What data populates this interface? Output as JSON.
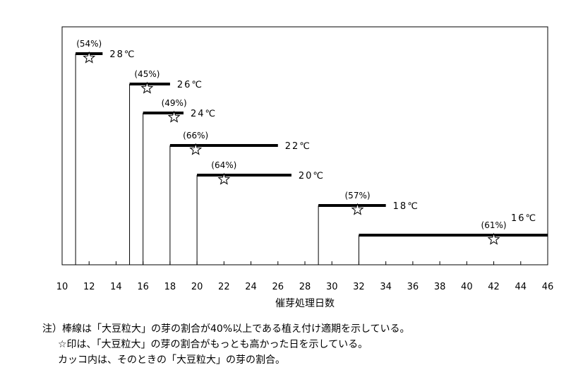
{
  "chart_data": {
    "type": "range-bar",
    "xlabel": "催芽処理日数",
    "xlim": [
      10,
      46
    ],
    "xticks": [
      10,
      12,
      14,
      16,
      18,
      20,
      22,
      24,
      26,
      28,
      30,
      32,
      34,
      36,
      38,
      40,
      42,
      44,
      46
    ],
    "grid": false,
    "series": [
      {
        "temperature": "28℃",
        "start": 11,
        "end": 13,
        "peak_day": 12,
        "peak_label": "(54%)"
      },
      {
        "temperature": "26℃",
        "start": 15,
        "end": 18,
        "peak_day": 16.3,
        "peak_label": "(45%)"
      },
      {
        "temperature": "24℃",
        "start": 16,
        "end": 19,
        "peak_day": 18.3,
        "peak_label": "(49%)"
      },
      {
        "temperature": "22℃",
        "start": 18,
        "end": 26,
        "peak_day": 19.9,
        "peak_label": "(66%)"
      },
      {
        "temperature": "20℃",
        "start": 20,
        "end": 27,
        "peak_day": 22,
        "peak_label": "(64%)"
      },
      {
        "temperature": "18℃",
        "start": 29,
        "end": 34,
        "peak_day": 31.9,
        "peak_label": "(57%)"
      },
      {
        "temperature": "16℃",
        "start": 32,
        "end": 46,
        "peak_day": 42,
        "peak_label": "(61%)"
      }
    ]
  },
  "notes": [
    "注）棒線は「大豆粒大」の芽の割合が40%以上である植え付け適期を示している。",
    "☆印は、「大豆粒大」の芽の割合がもっとも高かった日を示している。",
    "カッコ内は、そのときの「大豆粒大」の芽の割合。"
  ]
}
